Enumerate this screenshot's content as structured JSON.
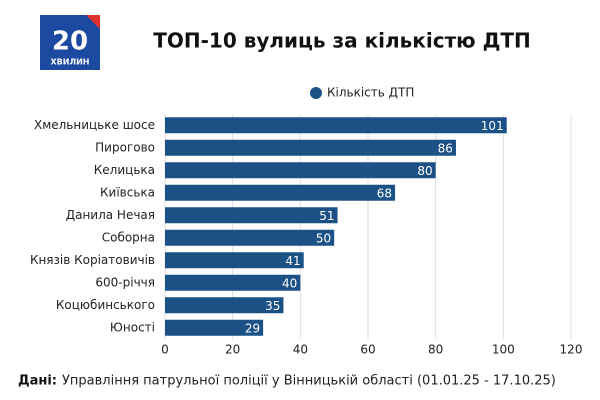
{
  "logo": {
    "number": "20",
    "text": "ХВИЛИН"
  },
  "chart_data": {
    "type": "barh",
    "title": "ТОП-10 вулиць за кількістю ДТП",
    "categories": [
      "Хмельницьке шосе",
      "Пирогово",
      "Келицька",
      "Київська",
      "Данила Нечая",
      "Соборна",
      "Князів Коріатовичів",
      "600-річчя",
      "Коцюбинського",
      "Юності"
    ],
    "series": [
      {
        "name": "Кількість ДТП",
        "color": "#1b5185",
        "values": [
          101,
          86,
          80,
          68,
          51,
          50,
          41,
          40,
          35,
          29
        ]
      }
    ],
    "xlim": [
      0,
      120
    ],
    "xticks": [
      0,
      20,
      40,
      60,
      80,
      100,
      120
    ],
    "grid": true,
    "source_label": "Дані:",
    "source": "Управління патрульної поліції у Вінницькій області (01.01.25 - 17.10.25)"
  }
}
